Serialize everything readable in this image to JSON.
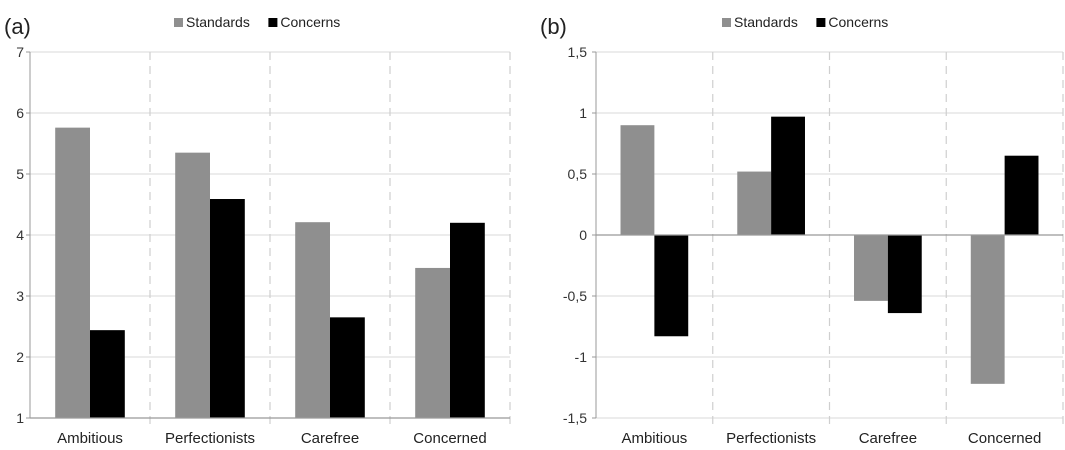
{
  "panels": [
    {
      "panel_label": "(a)",
      "legend": [
        {
          "name": "Standards",
          "color": "#8f8f8f"
        },
        {
          "name": "Concerns",
          "color": "#000000"
        }
      ]
    },
    {
      "panel_label": "(b)",
      "legend": [
        {
          "name": "Standards",
          "color": "#8f8f8f"
        },
        {
          "name": "Concerns",
          "color": "#000000"
        }
      ]
    }
  ],
  "chart_data": [
    {
      "type": "bar",
      "categories": [
        "Ambitious",
        "Perfectionists",
        "Carefree",
        "Concerned"
      ],
      "series": [
        {
          "name": "Standards",
          "color": "#8f8f8f",
          "values": [
            5.76,
            5.35,
            4.21,
            3.46
          ]
        },
        {
          "name": "Concerns",
          "color": "#000000",
          "values": [
            2.44,
            4.59,
            2.65,
            4.2
          ]
        }
      ],
      "ylim": [
        1,
        7
      ],
      "yticks": [
        1,
        2,
        3,
        4,
        5,
        6,
        7
      ],
      "ytick_labels": [
        "1",
        "2",
        "3",
        "4",
        "5",
        "6",
        "7"
      ],
      "grid": "horizontal major gridlines, dashed vertical category separators",
      "legend_position": "top-center"
    },
    {
      "type": "bar",
      "categories": [
        "Ambitious",
        "Perfectionists",
        "Carefree",
        "Concerned"
      ],
      "series": [
        {
          "name": "Standards",
          "color": "#8f8f8f",
          "values": [
            0.9,
            0.52,
            -0.54,
            -1.22
          ]
        },
        {
          "name": "Concerns",
          "color": "#000000",
          "values": [
            -0.83,
            0.97,
            -0.64,
            0.65
          ]
        }
      ],
      "ylim": [
        -1.5,
        1.5
      ],
      "yticks": [
        -1.5,
        -1,
        -0.5,
        0,
        0.5,
        1,
        1.5
      ],
      "ytick_labels": [
        "-1,5",
        "-1",
        "-0,5",
        "0",
        "0,5",
        "1",
        "1,5"
      ],
      "grid": "horizontal major gridlines, dashed vertical category separators",
      "legend_position": "top-center"
    }
  ]
}
